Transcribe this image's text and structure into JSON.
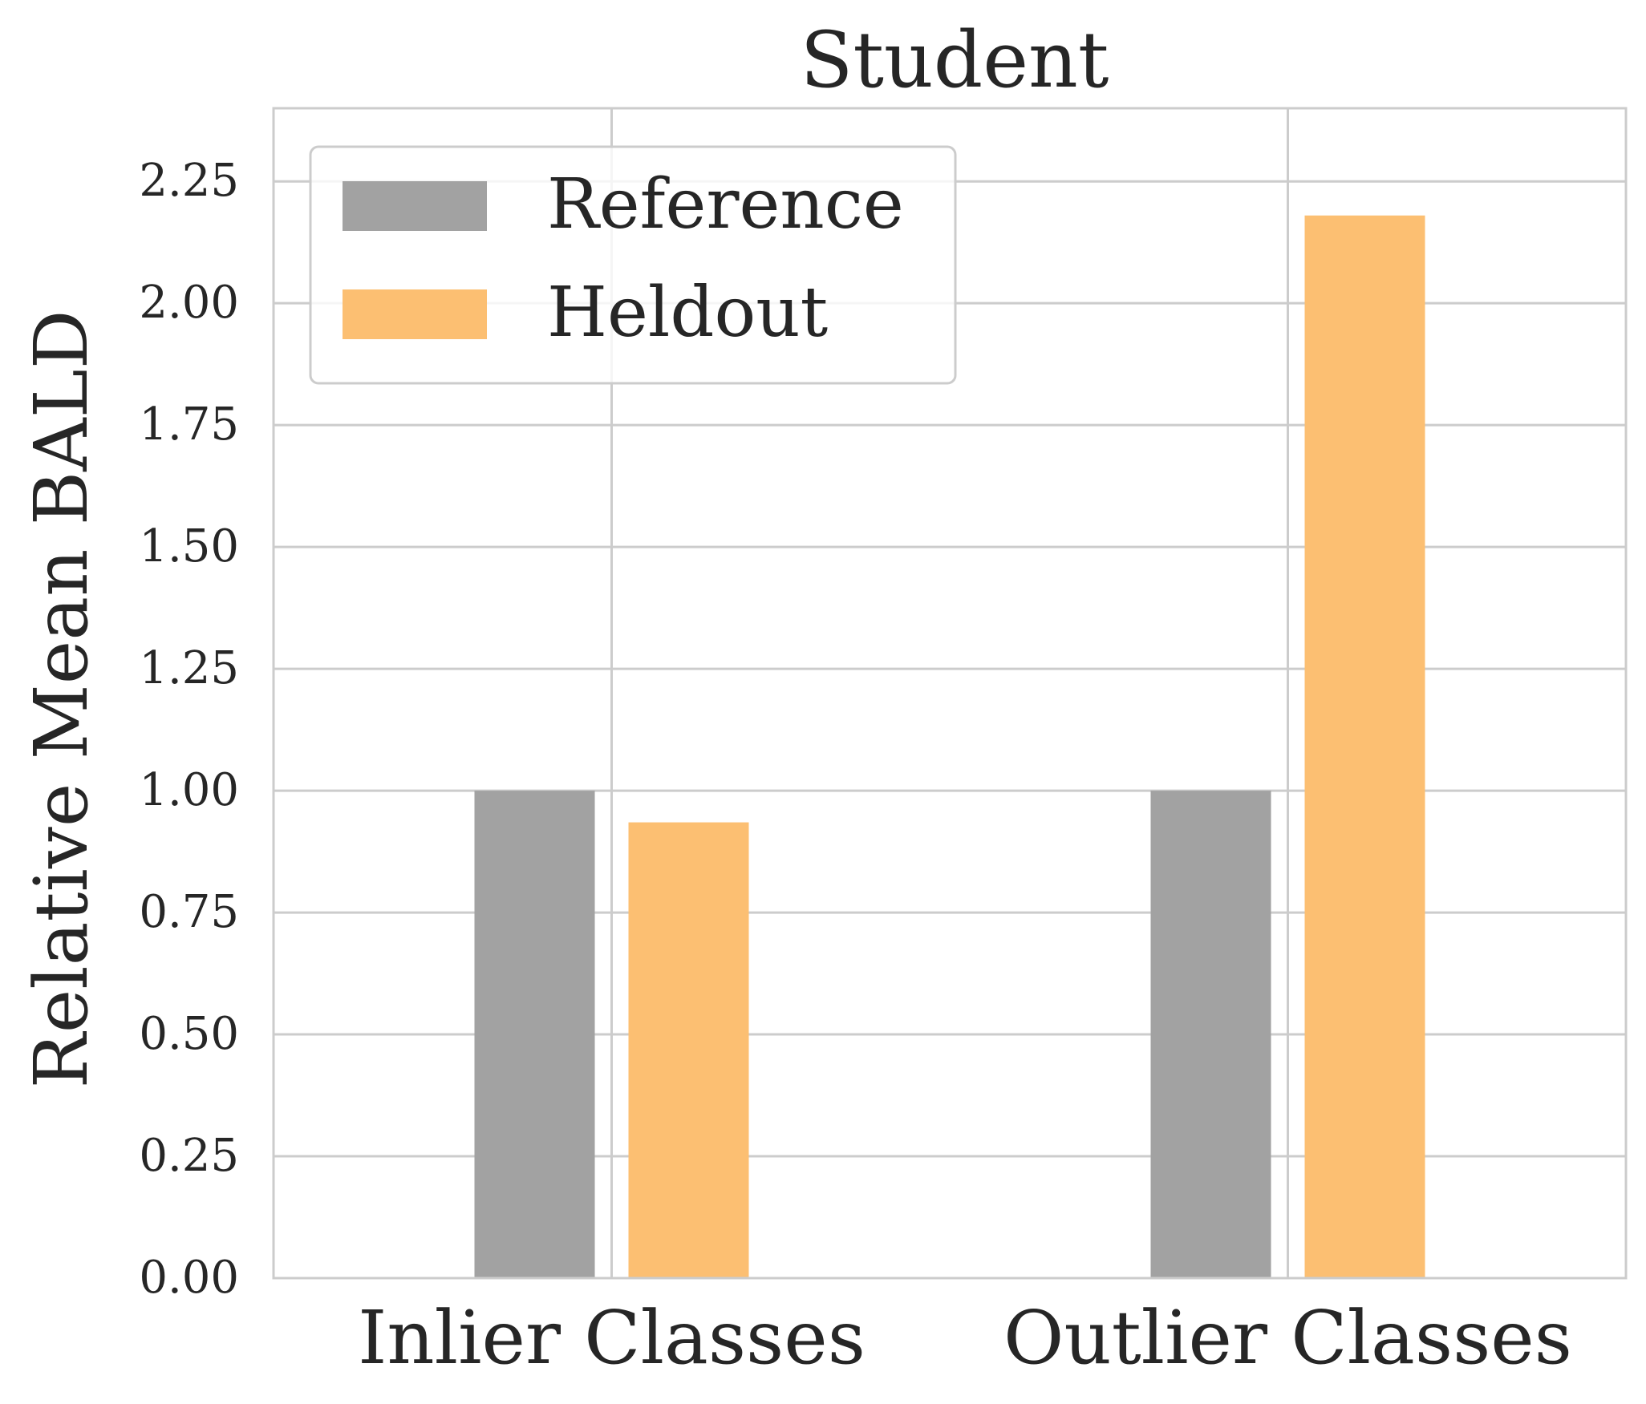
{
  "chart_data": {
    "type": "bar",
    "title": "Student",
    "xlabel": "",
    "ylabel": "Relative Mean BALD",
    "categories": [
      "Inlier Classes",
      "Outlier Classes"
    ],
    "series": [
      {
        "name": "Reference",
        "color": "#a2a2a2",
        "values": [
          1.0,
          1.0
        ]
      },
      {
        "name": "Heldout",
        "color": "#fcbf72",
        "values": [
          0.935,
          2.18
        ]
      }
    ],
    "ylim": [
      0,
      2.4
    ],
    "yticks": [
      "0.00",
      "0.25",
      "0.50",
      "0.75",
      "1.00",
      "1.25",
      "1.50",
      "1.75",
      "2.00",
      "2.25"
    ],
    "grid": true,
    "legend": "top-left"
  }
}
